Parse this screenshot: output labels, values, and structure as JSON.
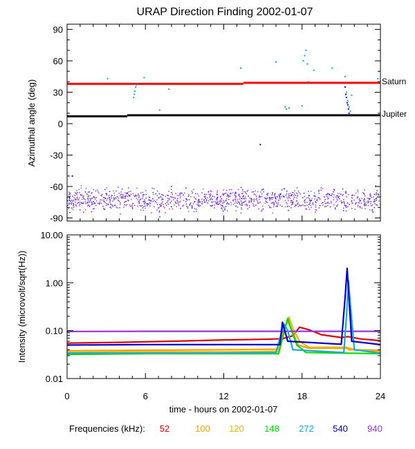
{
  "chart_data": [
    {
      "type": "scatter",
      "title": "URAP Direction Finding  2002-01-07",
      "xlabel": "",
      "ylabel": "Azimuthal angle (deg)",
      "xlim": [
        0,
        24
      ],
      "ylim": [
        -93,
        95
      ],
      "yticks": [
        90,
        60,
        30,
        0,
        -30,
        -60,
        -90
      ],
      "ytick_labels": [
        "90",
        "60",
        "30",
        "0",
        "-30",
        "-60",
        "-90"
      ],
      "reference_lines": [
        {
          "label": "Saturn",
          "color": "#ff0000",
          "segments": [
            [
              0,
              13.5,
              38
            ],
            [
              13.5,
              24,
              39
            ]
          ]
        },
        {
          "label": "Jupiter",
          "color": "#000000",
          "segments": [
            [
              0,
              4.6,
              7
            ],
            [
              4.6,
              24,
              8
            ]
          ]
        }
      ],
      "series": [
        {
          "color": "#0f9fe0",
          "points": [
            [
              3.1,
              43
            ],
            [
              5.1,
              25
            ],
            [
              5.15,
              28
            ],
            [
              5.2,
              31
            ],
            [
              5.25,
              35
            ],
            [
              5.3,
              37
            ],
            [
              5.9,
              44
            ],
            [
              7.1,
              13
            ],
            [
              7.8,
              33
            ],
            [
              13.3,
              53
            ],
            [
              16.0,
              59
            ],
            [
              16.7,
              16
            ],
            [
              16.8,
              14
            ],
            [
              17.0,
              15
            ],
            [
              18.0,
              17
            ],
            [
              18.1,
              60
            ],
            [
              18.2,
              65
            ],
            [
              18.3,
              70
            ],
            [
              18.4,
              57
            ],
            [
              18.5,
              40
            ],
            [
              18.9,
              51
            ],
            [
              20.3,
              53
            ],
            [
              21.3,
              45
            ],
            [
              21.4,
              30
            ],
            [
              21.5,
              22
            ],
            [
              21.6,
              16
            ],
            [
              21.7,
              12
            ],
            [
              21.8,
              27
            ],
            [
              23.8,
              43
            ],
            [
              7.1,
              -89
            ],
            [
              8.0,
              -60
            ]
          ]
        },
        {
          "color": "#0000d0",
          "points": [
            [
              21.3,
              35
            ],
            [
              21.35,
              28
            ],
            [
              21.4,
              25
            ],
            [
              21.45,
              20
            ],
            [
              21.5,
              18
            ],
            [
              21.55,
              14
            ],
            [
              21.6,
              10
            ],
            [
              14.8,
              -20
            ],
            [
              0.4,
              -50
            ]
          ]
        }
      ]
    },
    {
      "type": "line",
      "xlabel": "time - hours on 2002-01-07",
      "ylabel": "Intensity (microvolt/sqrt(Hz))",
      "xlim": [
        0,
        24
      ],
      "ylim": [
        0.01,
        10
      ],
      "log_y": true,
      "xticks": [
        0,
        6,
        12,
        18,
        24
      ],
      "xtick_labels": [
        "0",
        "6",
        "12",
        "18",
        "24"
      ],
      "yticks": [
        10,
        1,
        0.1,
        0.01
      ],
      "ytick_labels": [
        "10.00",
        "1.00",
        "0.10",
        "0.01"
      ],
      "series": [
        {
          "name": "52",
          "color": "#e00000",
          "points": [
            [
              0,
              0.055
            ],
            [
              4,
              0.057
            ],
            [
              8,
              0.06
            ],
            [
              12,
              0.064
            ],
            [
              15,
              0.066
            ],
            [
              16.5,
              0.068
            ],
            [
              17.3,
              0.078
            ],
            [
              17.8,
              0.118
            ],
            [
              18.5,
              0.105
            ],
            [
              19.5,
              0.082
            ],
            [
              21,
              0.072
            ],
            [
              21.5,
              0.075
            ],
            [
              22.5,
              0.067
            ],
            [
              24,
              0.062
            ]
          ]
        },
        {
          "name": "100",
          "color": "#ff9900",
          "points": [
            [
              0,
              0.038
            ],
            [
              6,
              0.039
            ],
            [
              12,
              0.04
            ],
            [
              16.2,
              0.041
            ],
            [
              16.6,
              0.11
            ],
            [
              16.9,
              0.16
            ],
            [
              17.3,
              0.09
            ],
            [
              17.7,
              0.05
            ],
            [
              18.5,
              0.043
            ],
            [
              21.4,
              0.043
            ],
            [
              21.6,
              0.04
            ],
            [
              24,
              0.039
            ]
          ]
        },
        {
          "name": "120",
          "color": "#e8b800",
          "points": [
            [
              0,
              0.035
            ],
            [
              6,
              0.036
            ],
            [
              12,
              0.036
            ],
            [
              16.2,
              0.037
            ],
            [
              16.7,
              0.12
            ],
            [
              17.0,
              0.19
            ],
            [
              17.3,
              0.11
            ],
            [
              17.8,
              0.06
            ],
            [
              18.5,
              0.045
            ],
            [
              21.4,
              0.045
            ],
            [
              22,
              0.04
            ],
            [
              24,
              0.036
            ]
          ]
        },
        {
          "name": "148",
          "color": "#00dd00",
          "points": [
            [
              0,
              0.032
            ],
            [
              6,
              0.033
            ],
            [
              12,
              0.033
            ],
            [
              16.2,
              0.033
            ],
            [
              16.6,
              0.09
            ],
            [
              16.9,
              0.18
            ],
            [
              17.2,
              0.1
            ],
            [
              17.6,
              0.05
            ],
            [
              18.3,
              0.035
            ],
            [
              24,
              0.033
            ]
          ]
        },
        {
          "name": "272",
          "color": "#10a8e8",
          "points": [
            [
              0,
              0.034
            ],
            [
              6,
              0.034
            ],
            [
              12,
              0.034
            ],
            [
              16.0,
              0.035
            ],
            [
              16.6,
              0.14
            ],
            [
              16.9,
              0.1
            ],
            [
              17.3,
              0.04
            ],
            [
              21.2,
              0.035
            ],
            [
              21.4,
              0.2
            ],
            [
              21.55,
              1.1
            ],
            [
              21.7,
              0.35
            ],
            [
              22.0,
              0.04
            ],
            [
              24,
              0.034
            ]
          ]
        },
        {
          "name": "540",
          "color": "#0000cc",
          "points": [
            [
              0,
              0.05
            ],
            [
              6,
              0.051
            ],
            [
              12,
              0.051
            ],
            [
              16.3,
              0.051
            ],
            [
              16.5,
              0.15
            ],
            [
              16.9,
              0.06
            ],
            [
              21.0,
              0.052
            ],
            [
              21.3,
              0.5
            ],
            [
              21.45,
              2.0
            ],
            [
              21.6,
              0.45
            ],
            [
              21.8,
              0.06
            ],
            [
              24,
              0.051
            ]
          ]
        },
        {
          "name": "940",
          "color": "#9933dd",
          "points": [
            [
              0,
              0.096
            ],
            [
              6,
              0.097
            ],
            [
              12,
              0.097
            ],
            [
              18,
              0.097
            ],
            [
              24,
              0.097
            ]
          ]
        }
      ]
    }
  ],
  "legend": {
    "label": "Frequencies (kHz):"
  }
}
